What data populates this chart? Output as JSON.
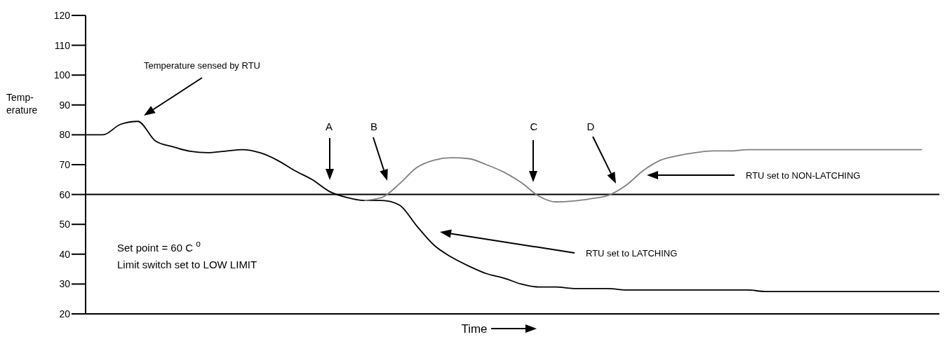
{
  "chart_data": {
    "type": "line",
    "xlabel": "Time",
    "ylabel": "Temp-\nerature",
    "categories": [
      null,
      null,
      null,
      null,
      null,
      null,
      null,
      null,
      null,
      null,
      null,
      null,
      null,
      null,
      null,
      null,
      null,
      null,
      null,
      null,
      null,
      null,
      null,
      null,
      null,
      null,
      null,
      null,
      null,
      null,
      null,
      null,
      null,
      null,
      null,
      null,
      null,
      null,
      null,
      null,
      null,
      null,
      null,
      null,
      null,
      null,
      null,
      null,
      null,
      null
    ],
    "series": [
      {
        "color": "#000000",
        "values": [
          80,
          80,
          83.5,
          84.5,
          78,
          76,
          74.5,
          74,
          74.5,
          75,
          74,
          71.5,
          68,
          65,
          61,
          59,
          58,
          58,
          56.5,
          49.5,
          43,
          39,
          36,
          33.5,
          32,
          30,
          29,
          29,
          28.5,
          28.5,
          28.5,
          28,
          28,
          28,
          28,
          28,
          28,
          28,
          28,
          27.5,
          27.5,
          27.5,
          27.5,
          27.5,
          27.5,
          27.5,
          27.5,
          27.5,
          27.5,
          27.5
        ]
      },
      {
        "color": "#808080",
        "values": [
          null,
          null,
          null,
          null,
          null,
          null,
          null,
          null,
          null,
          null,
          null,
          null,
          null,
          null,
          null,
          null,
          58,
          59,
          63.5,
          69,
          71.5,
          72.3,
          72,
          70,
          67.5,
          64,
          59.5,
          57.5,
          57.8,
          58.6,
          59.7,
          63,
          68,
          71.5,
          73,
          74,
          74.6,
          74.6,
          75,
          75,
          75,
          75,
          75,
          75,
          75,
          75,
          75,
          75,
          75,
          null
        ]
      }
    ],
    "ylim": [
      20,
      120
    ],
    "yticks": [
      20,
      30,
      40,
      50,
      60,
      70,
      80,
      90,
      100,
      110,
      120
    ],
    "tick_labels": "y",
    "marker": "none",
    "line_style": "solid",
    "ref_lines": [
      {
        "axis": "y",
        "value": 60,
        "color": "#000000"
      }
    ],
    "annotations": [
      "Temperature sensed by RTU",
      "A",
      "B",
      "C",
      "D",
      "RTU set to NON-LATCHING",
      "RTU set to LATCHING",
      "Set point = 60  C $^{o}$",
      "Limit switch set to LOW LIMIT"
    ]
  }
}
